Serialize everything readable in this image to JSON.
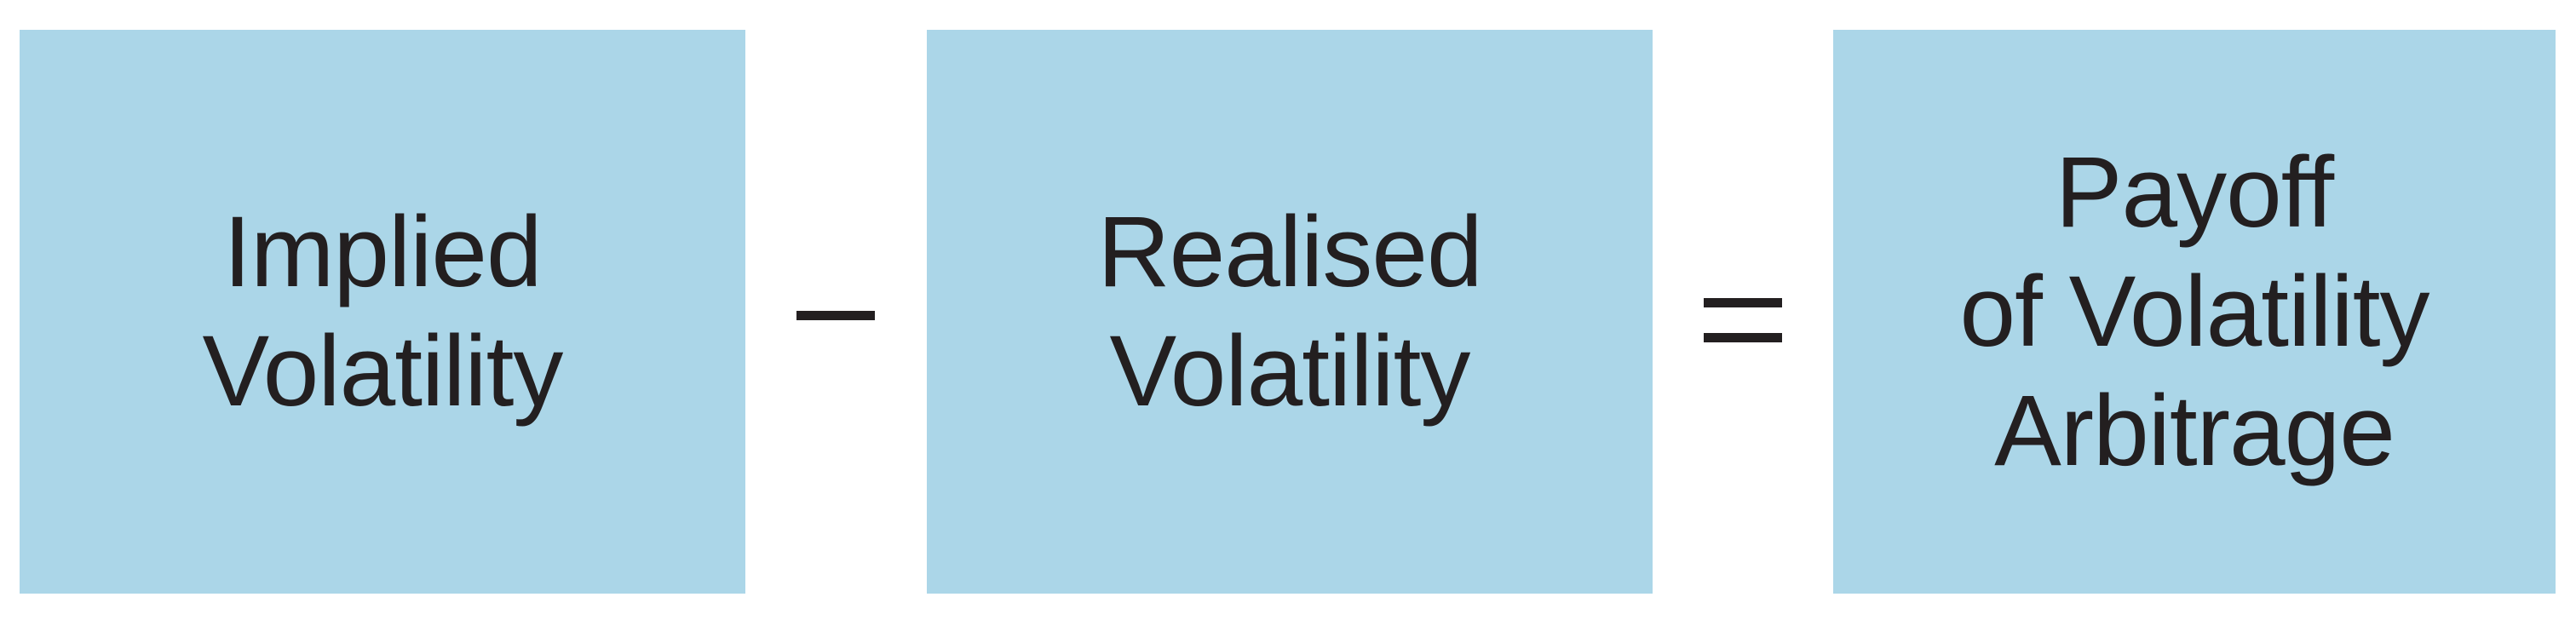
{
  "colors": {
    "box_fill": "#abd6e8",
    "text": "#231f20",
    "background": "#ffffff"
  },
  "boxes": [
    {
      "lines": [
        "Implied",
        "Volatility"
      ]
    },
    {
      "lines": [
        "Realised",
        "Volatility"
      ]
    },
    {
      "lines": [
        "Payoff",
        "of Volatility",
        "Arbitrage"
      ]
    }
  ],
  "operators": {
    "minus": "–",
    "equals": "="
  }
}
